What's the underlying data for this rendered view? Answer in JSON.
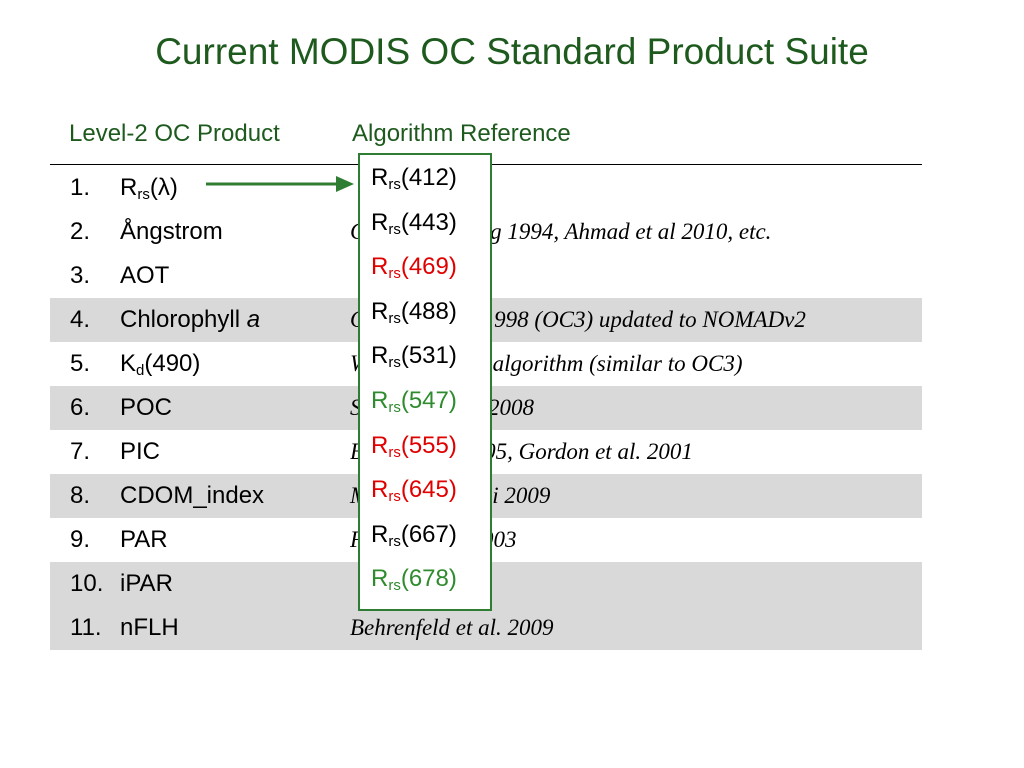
{
  "title": "Current MODIS OC Standard Product Suite",
  "headers": {
    "product": "Level-2 OC Product",
    "reference": "Algorithm Reference"
  },
  "rows": [
    {
      "num": "1.",
      "product": {
        "main": "R",
        "sub": "rs",
        "tail": "(λ)"
      },
      "reference": "",
      "shaded": false
    },
    {
      "num": "2.",
      "product": {
        "main": "Ångstrom",
        "sub": "",
        "tail": ""
      },
      "reference": "Gordon & Wang 1994, Ahmad et al 2010, etc.",
      "shaded": false
    },
    {
      "num": "3.",
      "product": {
        "main": "AOT",
        "sub": "",
        "tail": ""
      },
      "reference": "",
      "shaded": false
    },
    {
      "num": "4.",
      "product": {
        "main": "Chlorophyll ",
        "sub": "",
        "tail": "",
        "italic": "a"
      },
      "reference": "O'Reilly et al. 1998 (OC3) updated to NOMADv2",
      "shaded": true
    },
    {
      "num": "5.",
      "product": {
        "main": "K",
        "sub": "d",
        "tail": "(490)"
      },
      "reference": "Werdell (2012) algorithm (similar to OC3)",
      "shaded": false
    },
    {
      "num": "6.",
      "product": {
        "main": "POC",
        "sub": "",
        "tail": ""
      },
      "reference": "Stramski et al. 2008",
      "shaded": true
    },
    {
      "num": "7.",
      "product": {
        "main": "PIC",
        "sub": "",
        "tail": ""
      },
      "reference": "Balch et al. 2005, Gordon et al. 2001",
      "shaded": false
    },
    {
      "num": "8.",
      "product": {
        "main": "CDOM_index",
        "sub": "",
        "tail": ""
      },
      "reference": "Morel & Gentili 2009",
      "shaded": true
    },
    {
      "num": "9.",
      "product": {
        "main": "PAR",
        "sub": "",
        "tail": ""
      },
      "reference": "Frouin et al. 2003",
      "shaded": false
    },
    {
      "num": "10.",
      "product": {
        "main": "iPAR",
        "sub": "",
        "tail": ""
      },
      "reference": "",
      "shaded": true
    },
    {
      "num": "11.",
      "product": {
        "main": "nFLH",
        "sub": "",
        "tail": ""
      },
      "reference": "Behrenfeld et al. 2009",
      "shaded": true
    }
  ],
  "bands": [
    {
      "main": "R",
      "sub": "rs",
      "tail": "(412)",
      "color": "#000000"
    },
    {
      "main": "R",
      "sub": "rs",
      "tail": "(443)",
      "color": "#000000"
    },
    {
      "main": "R",
      "sub": "rs",
      "tail": "(469)",
      "color": "#e00000"
    },
    {
      "main": "R",
      "sub": "rs",
      "tail": "(488)",
      "color": "#000000"
    },
    {
      "main": "R",
      "sub": "rs",
      "tail": "(531)",
      "color": "#000000"
    },
    {
      "main": "R",
      "sub": "rs",
      "tail": "(547)",
      "color": "#2e8b2e"
    },
    {
      "main": "R",
      "sub": "rs",
      "tail": "(555)",
      "color": "#e00000"
    },
    {
      "main": "R",
      "sub": "rs",
      "tail": "(645)",
      "color": "#e00000"
    },
    {
      "main": "R",
      "sub": "rs",
      "tail": "(667)",
      "color": "#000000"
    },
    {
      "main": "R",
      "sub": "rs",
      "tail": "(678)",
      "color": "#2e8b2e"
    }
  ],
  "colors": {
    "title": "#1e5a1e",
    "arrow": "#2e7d32",
    "popup_border": "#2e7d32",
    "row_shade": "#d9d9d9"
  },
  "icons": {
    "pointer": "arrow-right-icon"
  }
}
